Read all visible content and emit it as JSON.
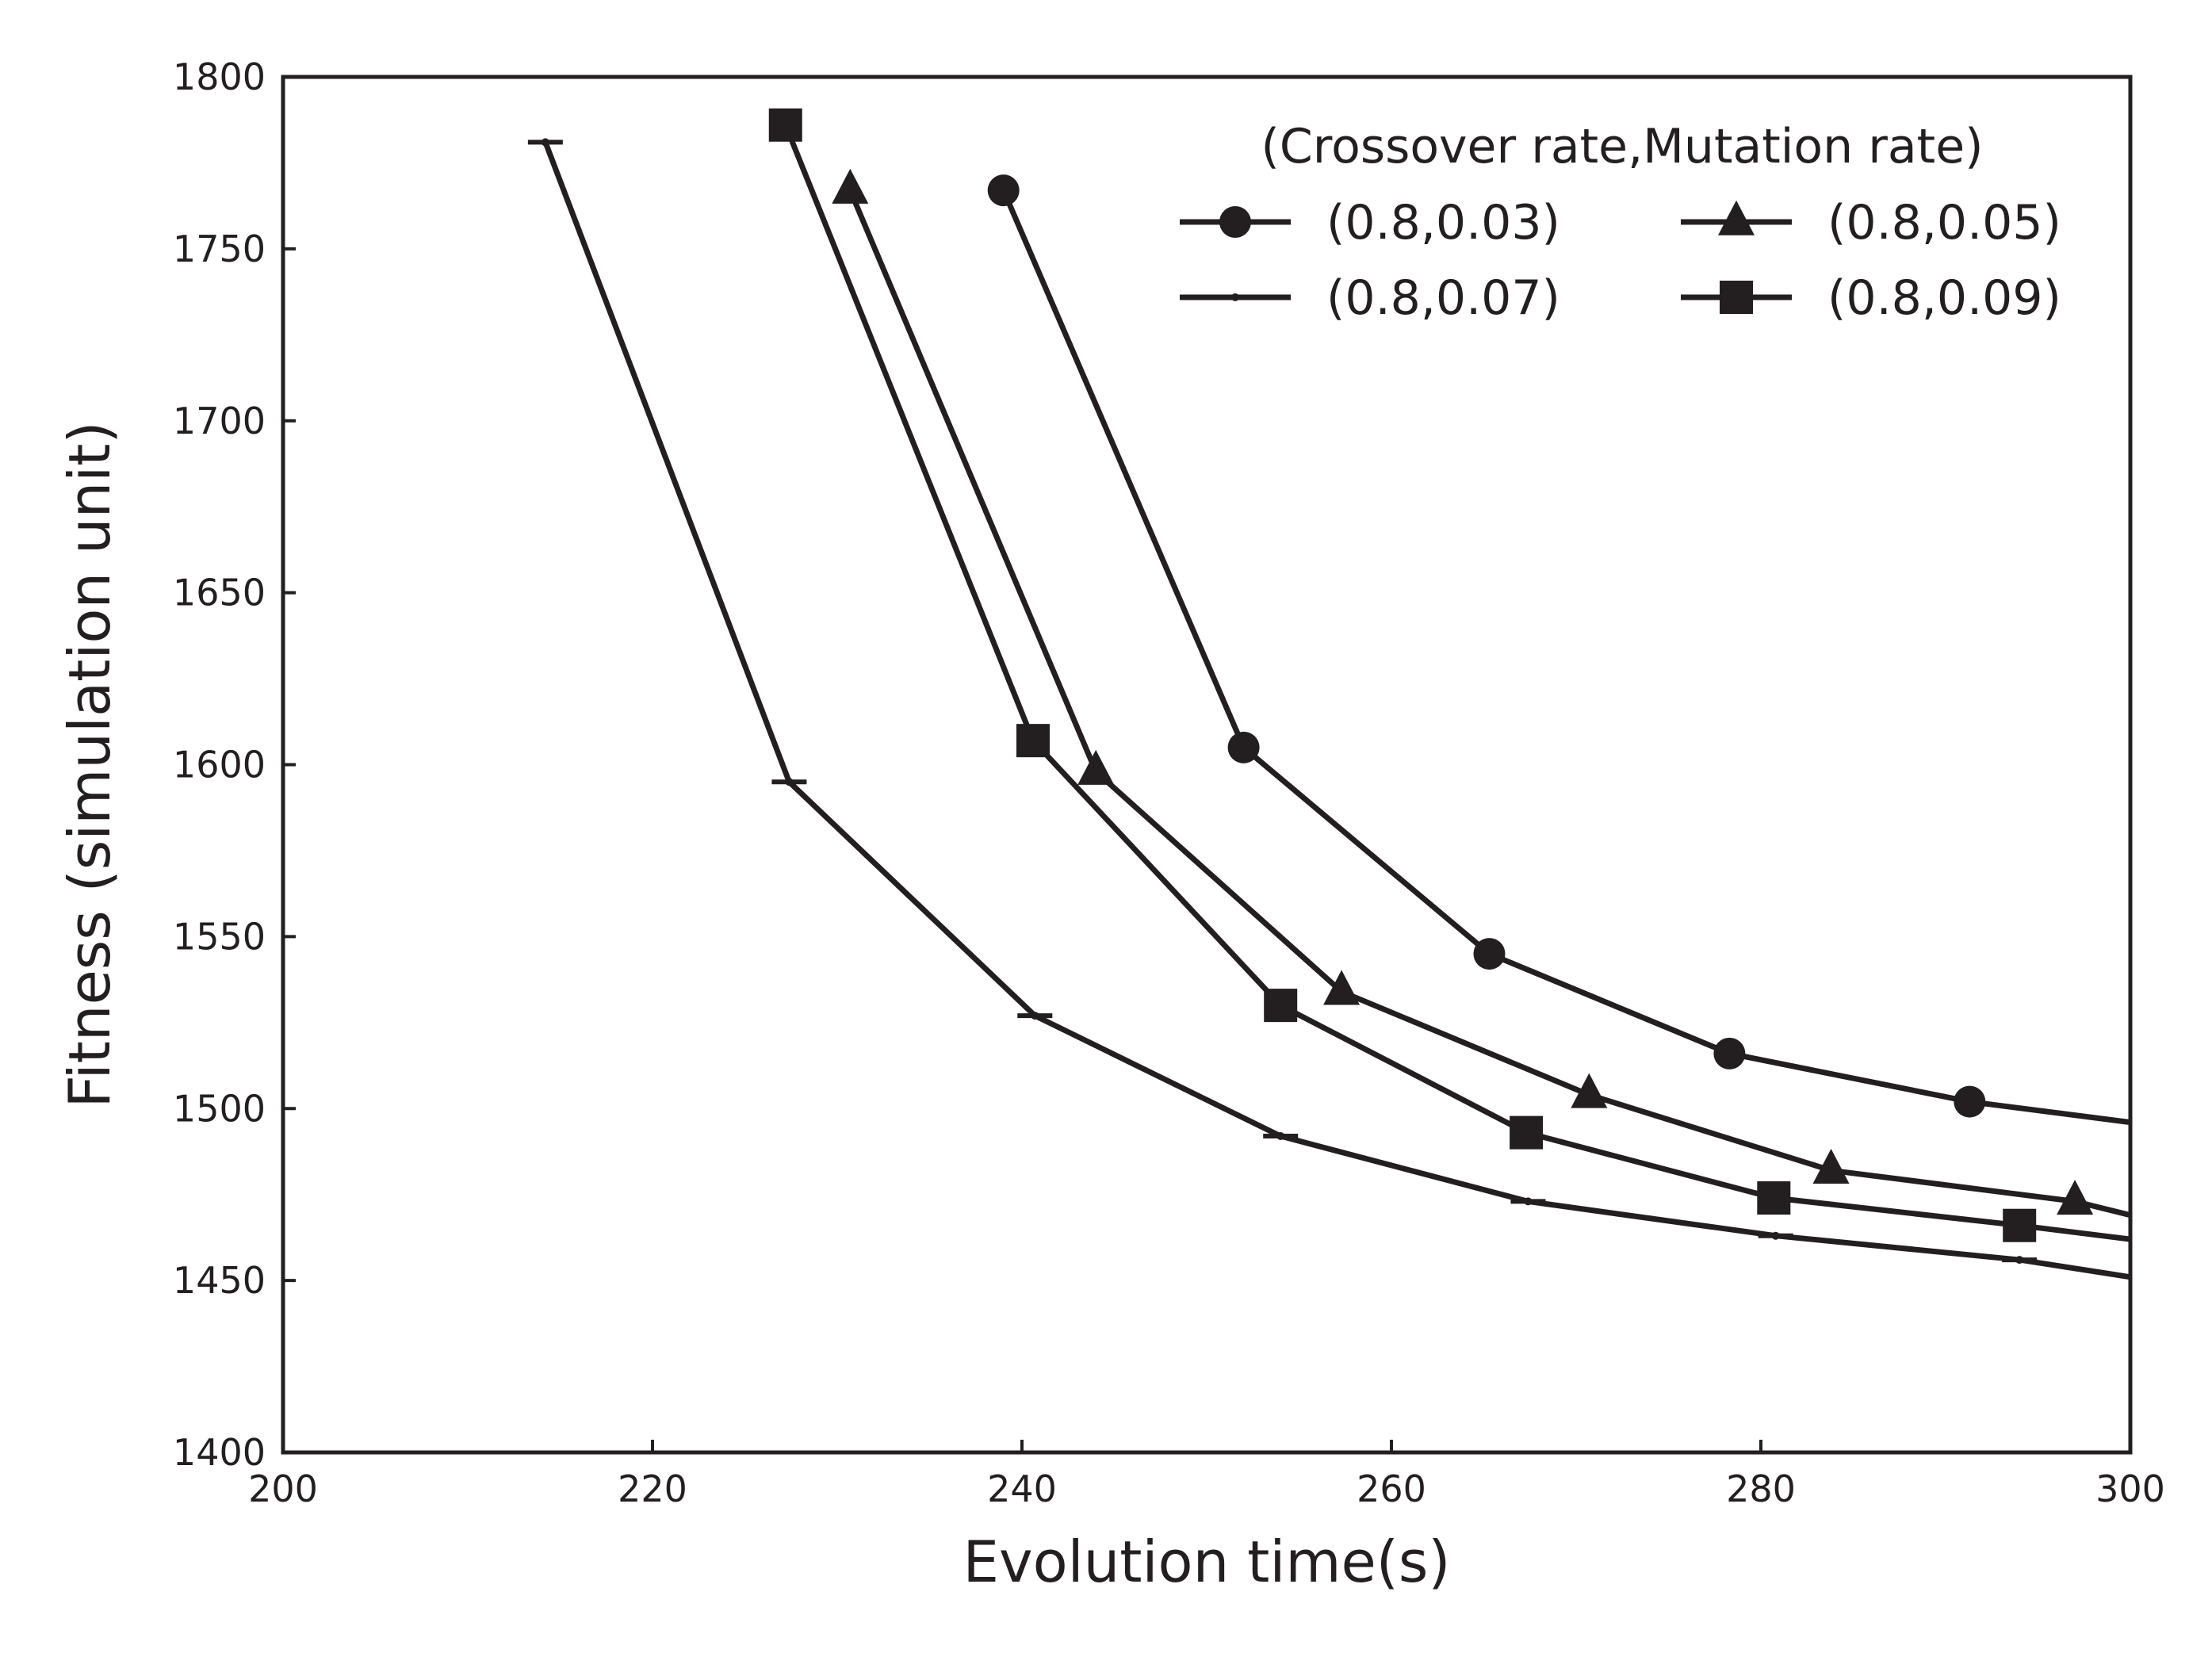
{
  "chart_data": {
    "type": "line",
    "title": "",
    "xlabel": "Evolution time(s)",
    "ylabel": "Fitness (simulation unit)",
    "xlim": [
      200,
      300
    ],
    "ylim": [
      1400,
      1800
    ],
    "xticks": [
      200,
      220,
      240,
      260,
      280,
      300
    ],
    "yticks": [
      1400,
      1450,
      1500,
      1550,
      1600,
      1650,
      1700,
      1750,
      1800
    ],
    "grid": false,
    "legend": {
      "title": "(Crossover rate,Mutation rate)",
      "position": "top-right",
      "columns": 2
    },
    "colors": {
      "line": "#231f20",
      "frame": "#231f20",
      "background": "#ffffff"
    },
    "series": [
      {
        "name": "(0.8,0.03)",
        "marker": "circle",
        "x": [
          239,
          252,
          265.3,
          278.3,
          291.3,
          300
        ],
        "y": [
          1767,
          1605,
          1545,
          1516,
          1502,
          1496
        ],
        "marked": [
          true,
          true,
          true,
          true,
          true,
          false
        ]
      },
      {
        "name": "(0.8,0.05)",
        "marker": "triangle",
        "x": [
          230.7,
          244,
          257.3,
          270.7,
          283.8,
          297,
          300
        ],
        "y": [
          1767,
          1598,
          1534,
          1504,
          1482,
          1473,
          1469
        ],
        "marked": [
          true,
          true,
          true,
          true,
          true,
          true,
          false
        ]
      },
      {
        "name": "(0.8,0.07)",
        "marker": "small-dot",
        "x": [
          214.2,
          227.4,
          240.7,
          254,
          267.4,
          280.8,
          294,
          300
        ],
        "y": [
          1781,
          1595,
          1527,
          1492,
          1473,
          1463,
          1456,
          1451
        ],
        "marked": [
          true,
          true,
          true,
          true,
          true,
          true,
          true,
          false
        ]
      },
      {
        "name": "(0.8,0.09)",
        "marker": "square",
        "x": [
          227.2,
          240.6,
          254,
          267.3,
          280.7,
          294,
          300
        ],
        "y": [
          1786,
          1607,
          1530,
          1493,
          1474,
          1466,
          1462
        ],
        "marked": [
          true,
          true,
          true,
          true,
          true,
          true,
          false
        ]
      }
    ]
  }
}
